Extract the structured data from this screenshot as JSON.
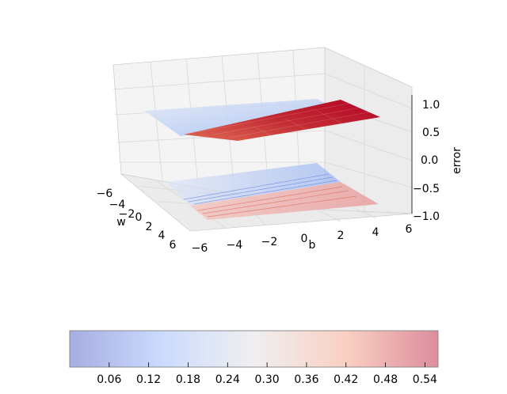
{
  "chart_data": {
    "type": "surface3d",
    "xlabel": "b",
    "ylabel": "w",
    "zlabel": "error",
    "x_ticks": [
      "−6",
      "−4",
      "−2",
      "0",
      "2",
      "4",
      "6"
    ],
    "y_ticks": [
      "−6",
      "−4",
      "−2",
      "0",
      "2",
      "4",
      "6"
    ],
    "z_ticks": [
      "−1.0",
      "−0.5",
      "0.0",
      "0.5",
      "1.0"
    ],
    "xlim": [
      -6,
      6
    ],
    "ylim": [
      -6,
      6
    ],
    "zlim": [
      -1,
      1
    ],
    "grid": true,
    "surface": {
      "colormap": "coolwarm",
      "note": "surface plus contour projection on floor"
    },
    "colorbar": {
      "orientation": "horizontal",
      "ticks": [
        "0.06",
        "0.12",
        "0.18",
        "0.24",
        "0.30",
        "0.36",
        "0.42",
        "0.48",
        "0.54"
      ],
      "range": [
        0.0,
        0.56
      ],
      "colors": {
        "low": "#3b4cc0",
        "mid": "#dddddd",
        "high": "#b40426"
      }
    }
  }
}
